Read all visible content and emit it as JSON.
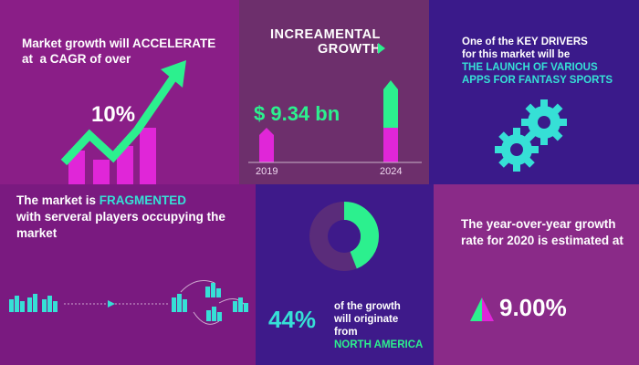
{
  "panel1": {
    "line1": "Market growth will ACCELERATE",
    "line2": "at  a CAGR of over",
    "value": "10%"
  },
  "panel2": {
    "title_line1": "INCREAMENTAL",
    "title_line2": "GROWTH",
    "value": "$ 9.34 bn",
    "year_start": "2019",
    "year_end": "2024"
  },
  "panel3": {
    "line1": "One of the KEY DRIVERS",
    "line2": "for this market will be",
    "hl1": "THE LAUNCH OF VARIOUS",
    "hl2": "APPS FOR FANTASY SPORTS"
  },
  "panel4": {
    "line1_pre": "The market is ",
    "line1_hl": "FRAGMENTED",
    "line2": "with serveral players occupying the",
    "line3": "market"
  },
  "panel5": {
    "value": "44%",
    "line1": "of the growth",
    "line2": "will originate",
    "line3": "from",
    "region": "NORTH AMERICA",
    "donut_share": 0.44
  },
  "panel6": {
    "line1": "The year-over-year growth",
    "line2": "rate for 2020 is estimated at",
    "value": "9.00%"
  },
  "colors": {
    "green": "#2cf08e",
    "cyan": "#36e0d6",
    "magenta": "#e026d8"
  }
}
